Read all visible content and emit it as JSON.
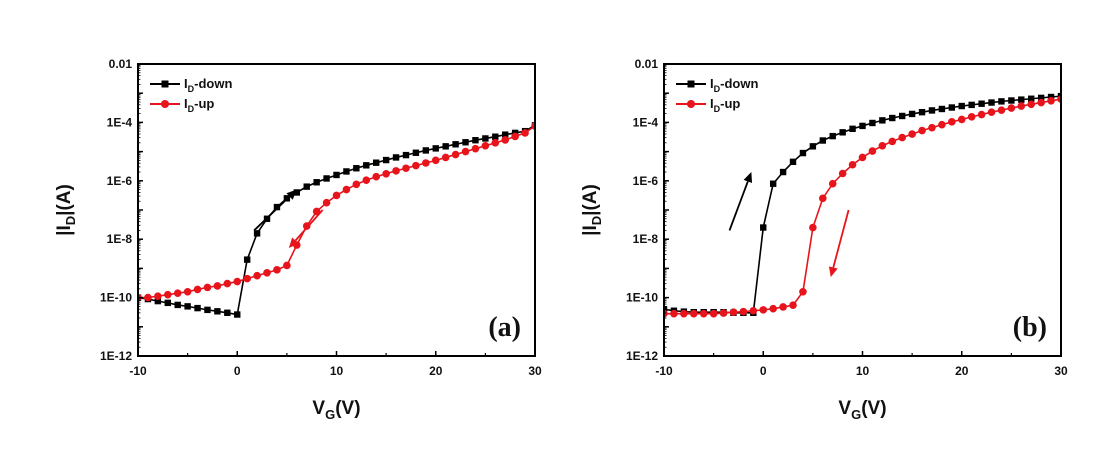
{
  "chart_data": [
    {
      "type": "line",
      "panel_label": "(a)",
      "title": "",
      "xlabel": "V",
      "xlabel_sub": "G",
      "xlabel_unit": "(V)",
      "ylabel_pre": "|I",
      "ylabel_sub": "D",
      "ylabel_post": "|(A)",
      "yscale": "log",
      "xlim": [
        -10,
        30
      ],
      "ylim": [
        1e-12,
        0.01
      ],
      "xticks": [
        -10,
        0,
        10,
        20,
        30
      ],
      "xtick_labels": [
        "-10",
        "0",
        "10",
        "20",
        "30"
      ],
      "yticks_log10": [
        -2,
        -4,
        -6,
        -8,
        -10,
        -12
      ],
      "ytick_labels": [
        "0.01",
        "1E-4",
        "1E-6",
        "1E-8",
        "1E-10",
        "1E-12"
      ],
      "legend": {
        "position": "top-left",
        "entries": [
          {
            "name_main": "I",
            "name_sub": "D",
            "name_rest": "-down",
            "color": "#000000",
            "marker": "square"
          },
          {
            "name_main": "I",
            "name_sub": "D",
            "name_rest": "-up",
            "color": "#e8141c",
            "marker": "circle"
          }
        ]
      },
      "x": [
        -10,
        -9,
        -8,
        -7,
        -6,
        -5,
        -4,
        -3,
        -2,
        -1,
        0,
        1,
        2,
        3,
        4,
        5,
        6,
        7,
        8,
        9,
        10,
        11,
        12,
        13,
        14,
        15,
        16,
        17,
        18,
        19,
        20,
        21,
        22,
        23,
        24,
        25,
        26,
        27,
        28,
        29,
        30
      ],
      "series": [
        {
          "name": "ID-down",
          "color": "#000000",
          "marker": "square",
          "log10_values": [
            -10.0,
            -10.05,
            -10.12,
            -10.18,
            -10.25,
            -10.3,
            -10.36,
            -10.42,
            -10.47,
            -10.52,
            -10.58,
            -8.7,
            -7.8,
            -7.3,
            -6.9,
            -6.6,
            -6.4,
            -6.2,
            -6.05,
            -5.92,
            -5.8,
            -5.68,
            -5.57,
            -5.47,
            -5.38,
            -5.29,
            -5.2,
            -5.12,
            -5.04,
            -4.96,
            -4.89,
            -4.82,
            -4.75,
            -4.68,
            -4.61,
            -4.55,
            -4.49,
            -4.42,
            -4.36,
            -4.3,
            -4.1
          ]
        },
        {
          "name": "ID-up",
          "color": "#e8141c",
          "marker": "circle",
          "log10_values": [
            -10.0,
            -10.0,
            -9.95,
            -9.9,
            -9.85,
            -9.8,
            -9.72,
            -9.65,
            -9.6,
            -9.52,
            -9.45,
            -9.35,
            -9.25,
            -9.15,
            -9.05,
            -8.9,
            -8.2,
            -7.55,
            -7.05,
            -6.75,
            -6.5,
            -6.3,
            -6.12,
            -5.98,
            -5.86,
            -5.76,
            -5.66,
            -5.57,
            -5.48,
            -5.39,
            -5.3,
            -5.2,
            -5.1,
            -5.0,
            -4.9,
            -4.8,
            -4.7,
            -4.6,
            -4.48,
            -4.36,
            -4.12
          ]
        }
      ],
      "arrows": [
        {
          "color": "#000000",
          "direction": "up-right",
          "x0": 1.7,
          "y0log": -7.7,
          "x1": 6.0,
          "y1log": -6.3
        },
        {
          "color": "#e8141c",
          "direction": "down-left",
          "x0": 8.6,
          "y0log": -7.0,
          "x1": 5.2,
          "y1log": -8.3
        }
      ]
    },
    {
      "type": "line",
      "panel_label": "(b)",
      "title": "",
      "xlabel": "V",
      "xlabel_sub": "G",
      "xlabel_unit": "(V)",
      "ylabel_pre": "|I",
      "ylabel_sub": "D",
      "ylabel_post": "|(A)",
      "yscale": "log",
      "xlim": [
        -10,
        30
      ],
      "ylim": [
        1e-12,
        0.01
      ],
      "xticks": [
        -10,
        0,
        10,
        20,
        30
      ],
      "xtick_labels": [
        "-10",
        "0",
        "10",
        "20",
        "30"
      ],
      "yticks_log10": [
        -2,
        -4,
        -6,
        -8,
        -10,
        -12
      ],
      "ytick_labels": [
        "0.01",
        "1E-4",
        "1E-6",
        "1E-8",
        "1E-10",
        "1E-12"
      ],
      "legend": {
        "position": "top-left",
        "entries": [
          {
            "name_main": "I",
            "name_sub": "D",
            "name_rest": "-down",
            "color": "#000000",
            "marker": "square"
          },
          {
            "name_main": "I",
            "name_sub": "D",
            "name_rest": "-up",
            "color": "#e8141c",
            "marker": "circle"
          }
        ]
      },
      "x": [
        -10,
        -9,
        -8,
        -7,
        -6,
        -5,
        -4,
        -3,
        -2,
        -1,
        0,
        1,
        2,
        3,
        4,
        5,
        6,
        7,
        8,
        9,
        10,
        11,
        12,
        13,
        14,
        15,
        16,
        17,
        18,
        19,
        20,
        21,
        22,
        23,
        24,
        25,
        26,
        27,
        28,
        29,
        30
      ],
      "series": [
        {
          "name": "ID-down",
          "color": "#000000",
          "marker": "square",
          "log10_values": [
            -10.4,
            -10.45,
            -10.48,
            -10.5,
            -10.5,
            -10.5,
            -10.5,
            -10.52,
            -10.52,
            -10.52,
            -7.6,
            -6.1,
            -5.7,
            -5.35,
            -5.05,
            -4.82,
            -4.62,
            -4.47,
            -4.34,
            -4.22,
            -4.12,
            -4.02,
            -3.93,
            -3.85,
            -3.78,
            -3.71,
            -3.65,
            -3.59,
            -3.54,
            -3.49,
            -3.44,
            -3.4,
            -3.36,
            -3.32,
            -3.28,
            -3.25,
            -3.22,
            -3.19,
            -3.16,
            -3.13,
            -3.1
          ]
        },
        {
          "name": "ID-up",
          "color": "#e8141c",
          "marker": "circle",
          "log10_values": [
            -10.55,
            -10.55,
            -10.55,
            -10.55,
            -10.55,
            -10.55,
            -10.53,
            -10.5,
            -10.48,
            -10.45,
            -10.42,
            -10.38,
            -10.32,
            -10.26,
            -9.8,
            -7.6,
            -6.6,
            -6.1,
            -5.75,
            -5.45,
            -5.2,
            -4.98,
            -4.8,
            -4.65,
            -4.52,
            -4.4,
            -4.28,
            -4.18,
            -4.08,
            -3.98,
            -3.9,
            -3.81,
            -3.73,
            -3.65,
            -3.58,
            -3.51,
            -3.44,
            -3.38,
            -3.32,
            -3.26,
            -3.2
          ]
        }
      ],
      "arrows": [
        {
          "color": "#000000",
          "direction": "up",
          "x0": -3.4,
          "y0log": -7.7,
          "x1": -1.2,
          "y1log": -5.7
        },
        {
          "color": "#e8141c",
          "direction": "down",
          "x0": 8.6,
          "y0log": -7.0,
          "x1": 6.8,
          "y1log": -9.3
        }
      ]
    }
  ]
}
